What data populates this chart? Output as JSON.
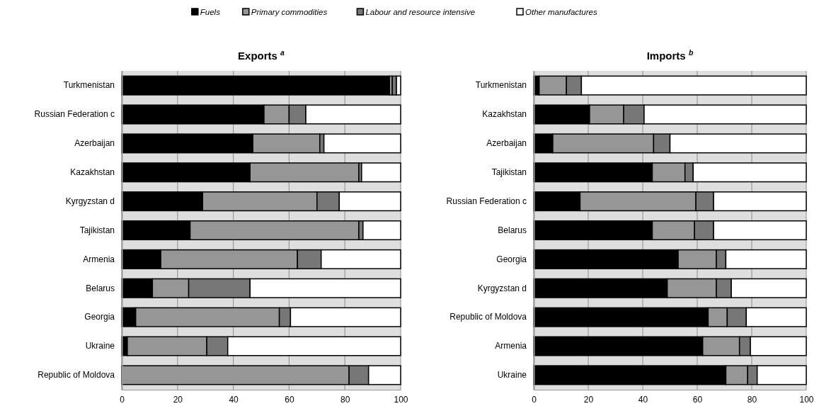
{
  "chart_data": [
    {
      "type": "bar",
      "orientation": "horizontal",
      "stacked": true,
      "title": "Exports $^{a}$",
      "categories": [
        "Turkmenistan",
        "Russian Federation c",
        "Azerbaijan",
        "Kazakhstan",
        "Kyrgyzstan d",
        "Tajikistan",
        "Armenia",
        "Belarus",
        "Georgia",
        "Ukraine",
        "Republic of Moldova"
      ],
      "xlim": [
        0,
        100
      ],
      "xticks": [
        0,
        20,
        40,
        60,
        80,
        100
      ],
      "grid": "x",
      "legend": "top",
      "series": [
        {
          "name": "Fuels",
          "color": "#000000",
          "values": [
            96,
            51,
            47,
            46,
            29,
            24.5,
            14,
            11,
            5,
            2,
            0
          ]
        },
        {
          "name": "Primary commodities",
          "color": "#969696",
          "values": [
            1,
            9,
            24,
            39,
            41,
            60.5,
            49,
            13,
            51.5,
            28.5,
            81.5
          ]
        },
        {
          "name": "Labour and resource intensive",
          "color": "#777777",
          "values": [
            1.5,
            6,
            1.5,
            1,
            8,
            1.5,
            8.5,
            22,
            4,
            7.5,
            7
          ]
        },
        {
          "name": "Other manufactures",
          "color": "#ffffff",
          "values": [
            1.5,
            34,
            27.5,
            14,
            22,
            13.5,
            28.5,
            54,
            39.5,
            62,
            11.5
          ]
        }
      ]
    },
    {
      "type": "bar",
      "orientation": "horizontal",
      "stacked": true,
      "title": "Imports $^{b}$",
      "categories": [
        "Turkmenistan",
        "Kazakhstan",
        "Azerbaijan",
        "Tajikistan",
        "Russian Federation c",
        "Belarus",
        "Georgia",
        "Kyrgyzstan d",
        "Republic of Moldova",
        "Armenia",
        "Ukraine"
      ],
      "xlim": [
        0,
        100
      ],
      "xticks": [
        0,
        20,
        40,
        60,
        80,
        100
      ],
      "grid": "x",
      "series": [
        {
          "color": "#000000",
          "values": [
            2,
            20.5,
            7,
            43.5,
            17,
            43.5,
            53,
            49,
            64,
            62,
            70.5
          ]
        },
        {
          "color": "#969696",
          "values": [
            10,
            12.5,
            37,
            12,
            42.5,
            15.5,
            14,
            18,
            7,
            13.5,
            8
          ]
        },
        {
          "color": "#777777",
          "values": [
            5.5,
            7.5,
            6,
            3,
            6.5,
            7,
            3.5,
            5.5,
            7,
            4,
            3.5
          ]
        },
        {
          "color": "#ffffff",
          "values": [
            82.5,
            59.5,
            50,
            41.5,
            34,
            34,
            29.5,
            27.5,
            22,
            20.5,
            18
          ]
        }
      ]
    }
  ]
}
